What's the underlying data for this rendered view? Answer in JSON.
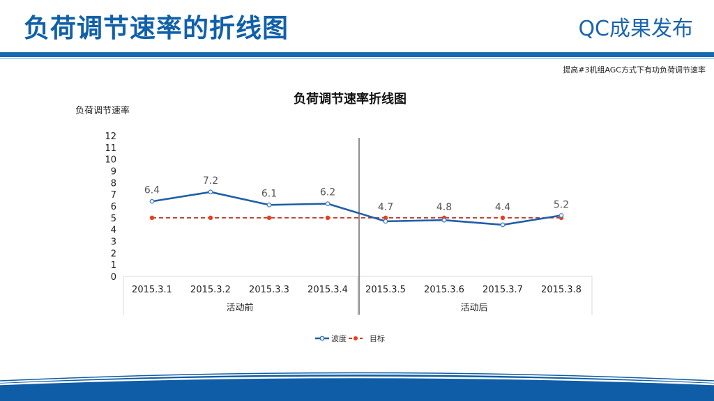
{
  "header": {
    "title": "负荷调节速率的折线图",
    "brand": "QC成果发布",
    "subtitle": "提高#3机组AGC方式下有功负荷调节速率"
  },
  "colors": {
    "brand_blue": "#1469b4",
    "series_blue": "#1f5fa8",
    "target_red": "#c0392b",
    "target_marker": "#e8401c"
  },
  "chart_data": {
    "type": "line",
    "title": "负荷调节速率折线图",
    "ylabel": "负荷调节速率",
    "xlabel": "",
    "ylim": [
      0,
      12
    ],
    "yticks": [
      "0",
      "1",
      "2",
      "3",
      "4",
      "5",
      "6",
      "7",
      "8",
      "9",
      "10",
      "11",
      "12"
    ],
    "categories": [
      "2015.3.1",
      "2015.3.2",
      "2015.3.3",
      "2015.3.4",
      "2015.3.5",
      "2015.3.6",
      "2015.3.7",
      "2015.3.8"
    ],
    "groups": [
      {
        "label": "活动前",
        "categories": [
          "2015.3.1",
          "2015.3.2",
          "2015.3.3",
          "2015.3.4"
        ]
      },
      {
        "label": "活动后",
        "categories": [
          "2015.3.5",
          "2015.3.6",
          "2015.3.7",
          "2015.3.8"
        ]
      }
    ],
    "series": [
      {
        "name": "波度",
        "values": [
          6.4,
          7.2,
          6.1,
          6.2,
          4.7,
          4.8,
          4.4,
          5.2
        ],
        "labels": [
          "6.4",
          "7.2",
          "6.1",
          "6.2",
          "4.7",
          "4.8",
          "4.4",
          "5.2"
        ],
        "style": "solid"
      },
      {
        "name": "目标",
        "values": [
          5,
          5,
          5,
          5,
          5,
          5,
          5,
          5
        ],
        "style": "dashed"
      }
    ],
    "legend": {
      "position": "bottom",
      "entries": [
        "波度",
        "目标"
      ]
    },
    "grid": false,
    "divider_between": [
      "2015.3.4",
      "2015.3.5"
    ]
  }
}
